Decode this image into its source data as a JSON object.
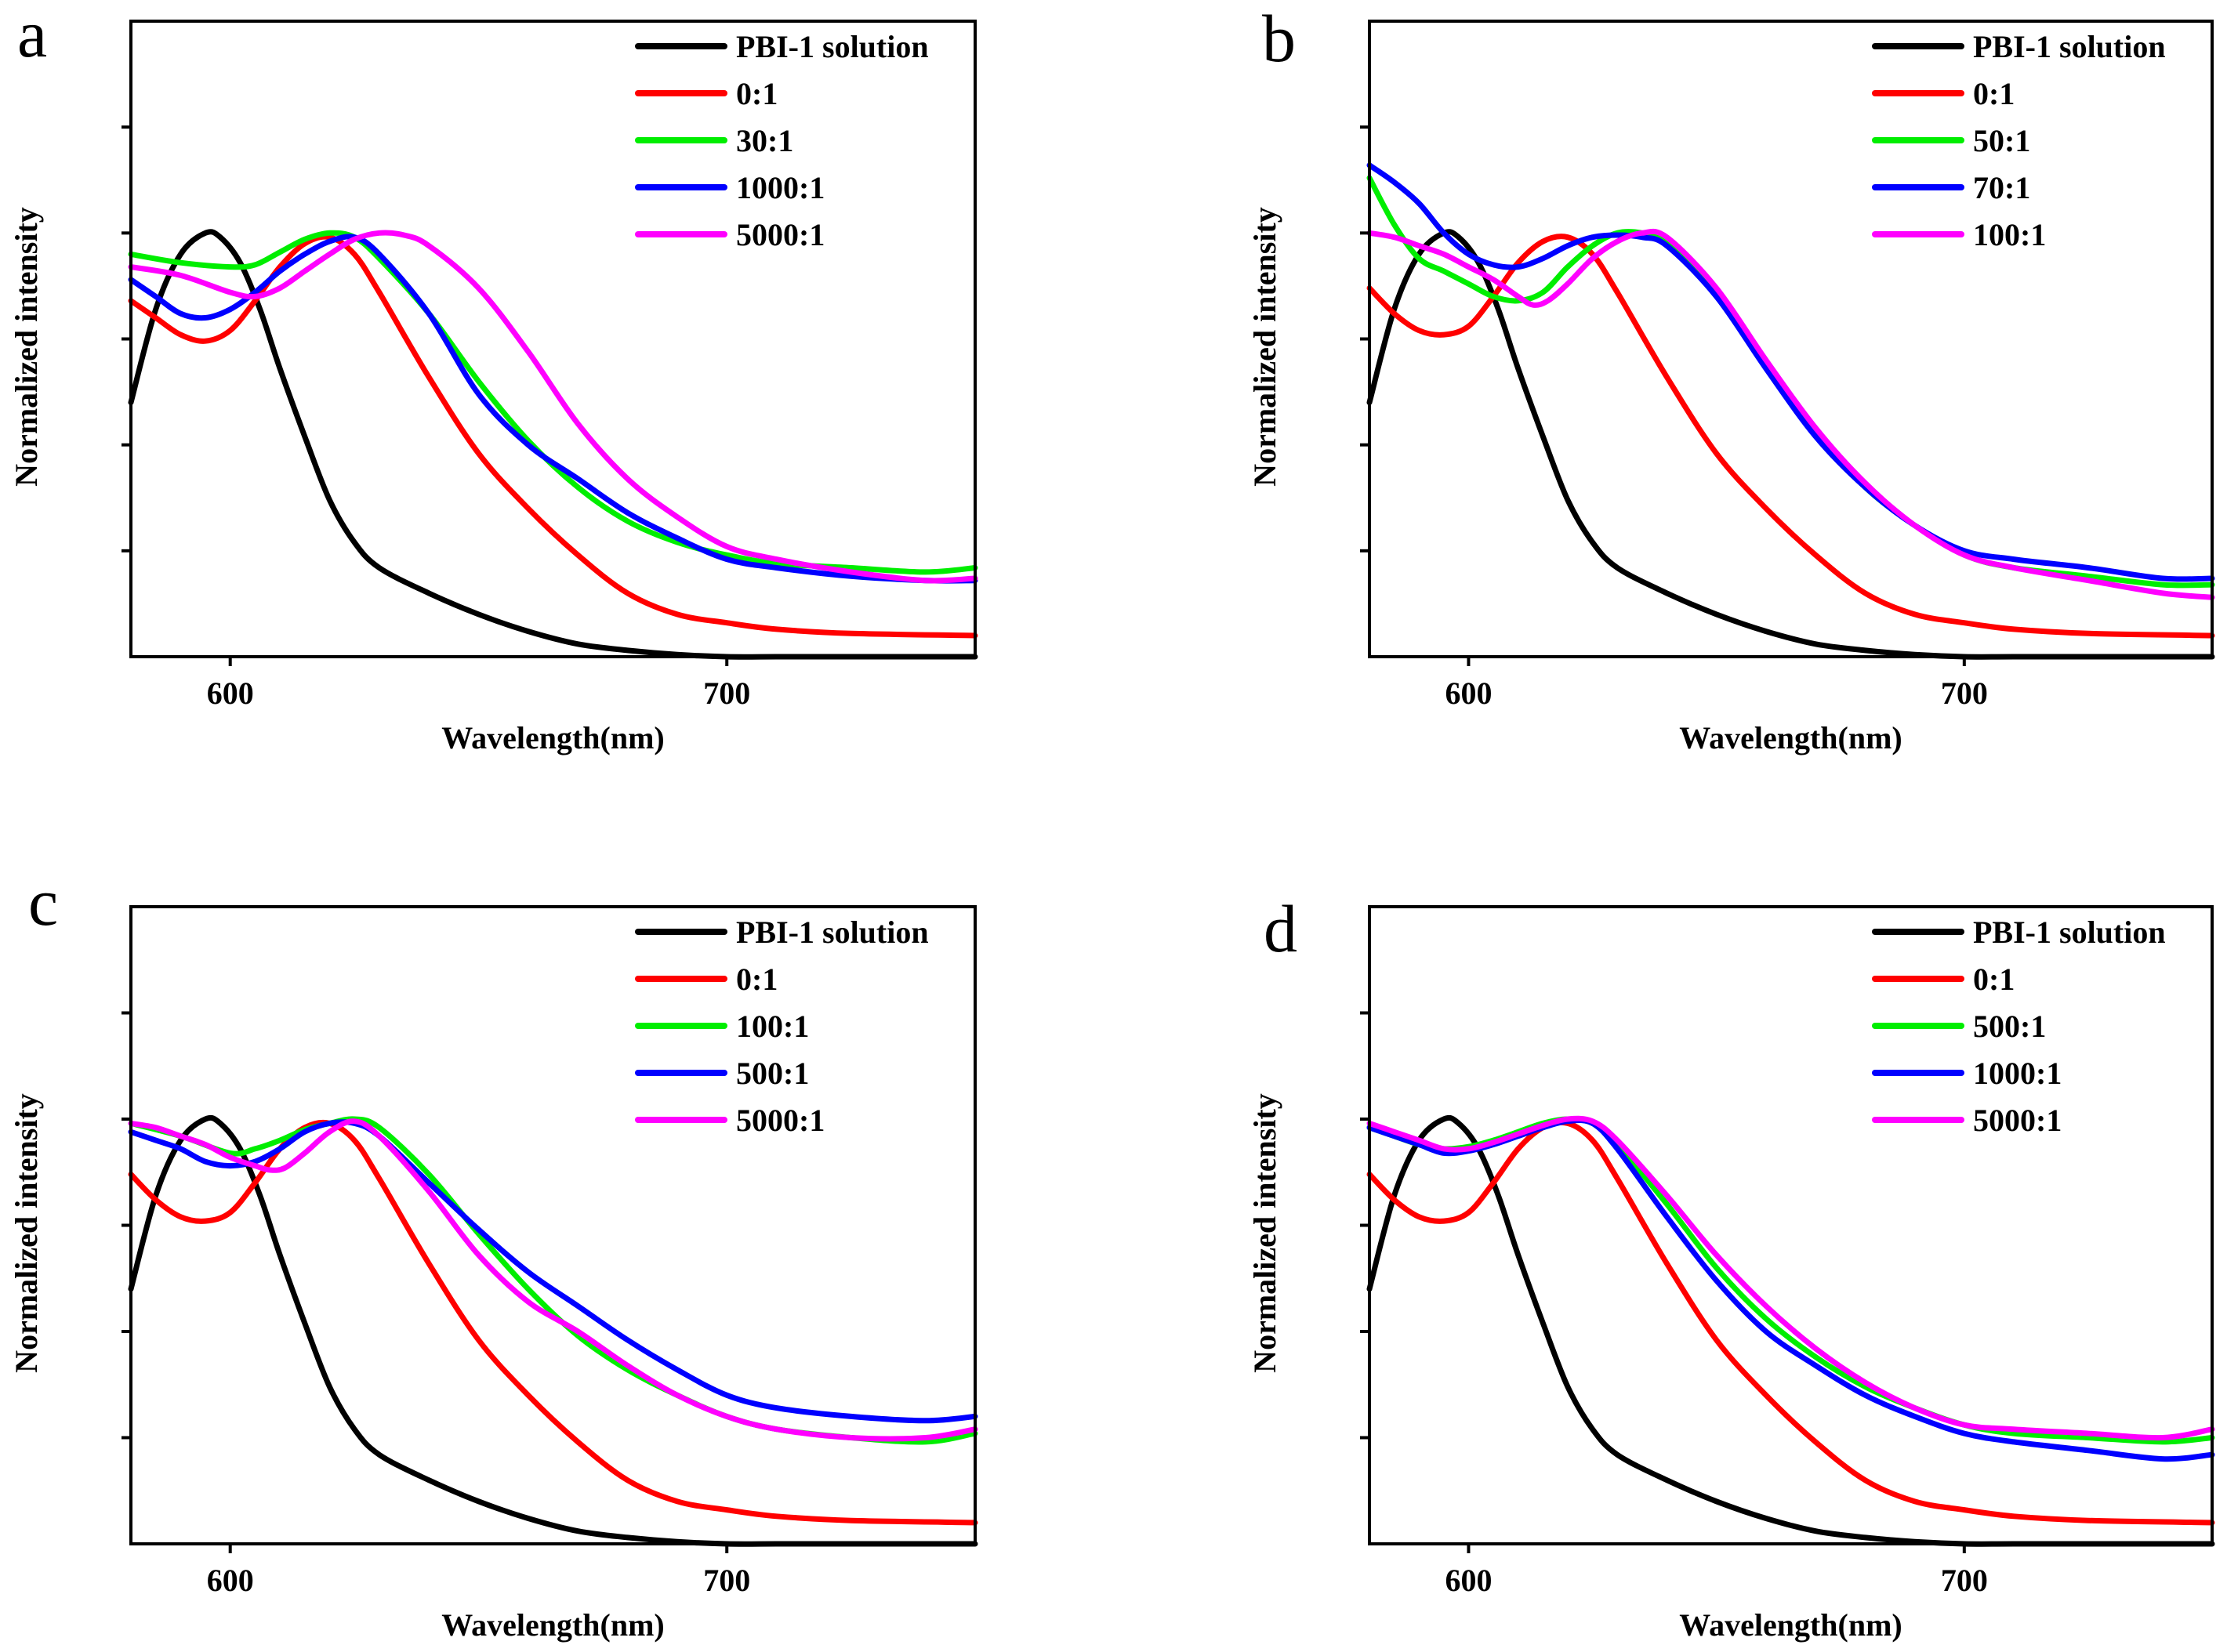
{
  "chart_data": [
    {
      "type": "line",
      "panel": "a",
      "xlabel": "Wavelength(nm)",
      "ylabel": "Normalized intensity",
      "xlim": [
        580,
        750
      ],
      "ylim": [
        0,
        1.5
      ],
      "xticks": [
        600,
        700
      ],
      "legend_position": "top-right",
      "series": [
        {
          "name": "PBI-1 solution",
          "color": "#000000",
          "x": [
            580,
            585,
            590,
            595,
            598,
            602,
            606,
            610,
            615,
            620,
            625,
            630,
            640,
            650,
            660,
            670,
            680,
            690,
            700,
            710,
            720,
            735,
            750
          ],
          "y": [
            0.6,
            0.82,
            0.95,
            1.0,
            0.99,
            0.93,
            0.82,
            0.68,
            0.52,
            0.37,
            0.27,
            0.21,
            0.15,
            0.1,
            0.06,
            0.03,
            0.015,
            0.005,
            0.0,
            0.0,
            0.0,
            0.0,
            0.0
          ]
        },
        {
          "name": "0:1",
          "color": "#ff0000",
          "x": [
            580,
            585,
            590,
            595,
            600,
            605,
            610,
            615,
            620,
            625,
            630,
            640,
            650,
            660,
            670,
            680,
            690,
            700,
            710,
            725,
            750
          ],
          "y": [
            0.84,
            0.8,
            0.76,
            0.745,
            0.77,
            0.84,
            0.92,
            0.975,
            0.99,
            0.95,
            0.86,
            0.66,
            0.48,
            0.35,
            0.24,
            0.15,
            0.1,
            0.08,
            0.065,
            0.055,
            0.05
          ]
        },
        {
          "name": "30:1",
          "color": "#00ee00",
          "x": [
            580,
            590,
            600,
            605,
            610,
            615,
            620,
            625,
            630,
            640,
            650,
            660,
            670,
            680,
            690,
            700,
            710,
            725,
            740,
            750
          ],
          "y": [
            0.95,
            0.93,
            0.92,
            0.925,
            0.955,
            0.985,
            1.0,
            0.99,
            0.94,
            0.81,
            0.65,
            0.51,
            0.4,
            0.32,
            0.27,
            0.24,
            0.22,
            0.21,
            0.2,
            0.21
          ]
        },
        {
          "name": "1000:1",
          "color": "#0000ff",
          "x": [
            580,
            585,
            590,
            595,
            600,
            605,
            610,
            615,
            620,
            625,
            630,
            640,
            650,
            660,
            670,
            680,
            690,
            700,
            710,
            725,
            740,
            750
          ],
          "y": [
            0.89,
            0.85,
            0.81,
            0.8,
            0.82,
            0.86,
            0.91,
            0.95,
            0.98,
            0.99,
            0.95,
            0.81,
            0.62,
            0.5,
            0.42,
            0.34,
            0.28,
            0.23,
            0.21,
            0.19,
            0.18,
            0.18
          ]
        },
        {
          "name": "5000:1",
          "color": "#ff00ff",
          "x": [
            580,
            590,
            600,
            605,
            610,
            615,
            620,
            625,
            630,
            635,
            640,
            650,
            660,
            670,
            680,
            690,
            700,
            710,
            725,
            740,
            750
          ],
          "y": [
            0.92,
            0.9,
            0.86,
            0.85,
            0.87,
            0.91,
            0.95,
            0.985,
            1.0,
            0.995,
            0.97,
            0.87,
            0.72,
            0.55,
            0.42,
            0.33,
            0.26,
            0.23,
            0.2,
            0.18,
            0.185
          ]
        }
      ]
    },
    {
      "type": "line",
      "panel": "b",
      "xlabel": "Wavelength(nm)",
      "ylabel": "Normalized intensity",
      "xlim": [
        580,
        750
      ],
      "ylim": [
        0,
        1.5
      ],
      "xticks": [
        600,
        700
      ],
      "legend_position": "top-right",
      "series": [
        {
          "name": "PBI-1 solution",
          "color": "#000000",
          "x": [
            580,
            585,
            590,
            595,
            598,
            602,
            606,
            610,
            615,
            620,
            625,
            630,
            640,
            650,
            660,
            670,
            680,
            690,
            700,
            710,
            720,
            735,
            750
          ],
          "y": [
            0.6,
            0.82,
            0.95,
            1.0,
            0.99,
            0.93,
            0.82,
            0.68,
            0.52,
            0.37,
            0.27,
            0.21,
            0.15,
            0.1,
            0.06,
            0.03,
            0.015,
            0.005,
            0.0,
            0.0,
            0.0,
            0.0,
            0.0
          ]
        },
        {
          "name": "0:1",
          "color": "#ff0000",
          "x": [
            580,
            585,
            590,
            595,
            600,
            605,
            610,
            615,
            620,
            625,
            630,
            640,
            650,
            660,
            670,
            680,
            690,
            700,
            710,
            725,
            750
          ],
          "y": [
            0.87,
            0.81,
            0.77,
            0.76,
            0.78,
            0.85,
            0.93,
            0.98,
            0.99,
            0.95,
            0.86,
            0.66,
            0.48,
            0.35,
            0.24,
            0.15,
            0.1,
            0.08,
            0.065,
            0.055,
            0.05
          ]
        },
        {
          "name": "50:1",
          "color": "#00ee00",
          "x": [
            580,
            585,
            590,
            595,
            600,
            605,
            610,
            615,
            620,
            625,
            630,
            635,
            640,
            650,
            660,
            670,
            680,
            690,
            700,
            710,
            725,
            740,
            750
          ],
          "y": [
            1.13,
            1.02,
            0.94,
            0.91,
            0.88,
            0.85,
            0.84,
            0.86,
            0.92,
            0.97,
            1.0,
            1.0,
            0.98,
            0.86,
            0.69,
            0.53,
            0.4,
            0.31,
            0.24,
            0.21,
            0.19,
            0.17,
            0.17
          ]
        },
        {
          "name": "70:1",
          "color": "#0000ff",
          "x": [
            580,
            585,
            590,
            595,
            600,
            605,
            610,
            615,
            620,
            625,
            630,
            635,
            640,
            650,
            660,
            670,
            680,
            690,
            700,
            710,
            725,
            740,
            750
          ],
          "y": [
            1.16,
            1.12,
            1.07,
            1.0,
            0.95,
            0.925,
            0.92,
            0.94,
            0.97,
            0.99,
            0.995,
            0.99,
            0.97,
            0.85,
            0.68,
            0.52,
            0.4,
            0.31,
            0.25,
            0.23,
            0.21,
            0.185,
            0.185
          ]
        },
        {
          "name": "100:1",
          "color": "#ff00ff",
          "x": [
            580,
            585,
            590,
            595,
            600,
            605,
            610,
            613,
            616,
            620,
            625,
            630,
            635,
            640,
            650,
            660,
            670,
            680,
            690,
            700,
            710,
            725,
            740,
            750
          ],
          "y": [
            1.0,
            0.99,
            0.97,
            0.95,
            0.92,
            0.89,
            0.85,
            0.83,
            0.84,
            0.88,
            0.94,
            0.98,
            1.0,
            0.99,
            0.87,
            0.7,
            0.54,
            0.41,
            0.31,
            0.24,
            0.21,
            0.18,
            0.15,
            0.14
          ]
        }
      ]
    },
    {
      "type": "line",
      "panel": "c",
      "xlabel": "Wavelength(nm)",
      "ylabel": "Normalized intensity",
      "xlim": [
        580,
        750
      ],
      "ylim": [
        0,
        1.5
      ],
      "xticks": [
        600,
        700
      ],
      "legend_position": "top-right",
      "series": [
        {
          "name": "PBI-1 solution",
          "color": "#000000",
          "x": [
            580,
            585,
            590,
            595,
            598,
            602,
            606,
            610,
            615,
            620,
            625,
            630,
            640,
            650,
            660,
            670,
            680,
            690,
            700,
            710,
            720,
            735,
            750
          ],
          "y": [
            0.6,
            0.82,
            0.95,
            1.0,
            0.99,
            0.93,
            0.82,
            0.68,
            0.52,
            0.37,
            0.27,
            0.21,
            0.15,
            0.1,
            0.06,
            0.03,
            0.015,
            0.005,
            0.0,
            0.0,
            0.0,
            0.0,
            0.0
          ]
        },
        {
          "name": "0:1",
          "color": "#ff0000",
          "x": [
            580,
            585,
            590,
            595,
            600,
            605,
            610,
            615,
            620,
            625,
            630,
            640,
            650,
            660,
            670,
            680,
            690,
            700,
            710,
            725,
            750
          ],
          "y": [
            0.87,
            0.81,
            0.77,
            0.76,
            0.78,
            0.85,
            0.93,
            0.98,
            0.99,
            0.95,
            0.86,
            0.66,
            0.48,
            0.35,
            0.24,
            0.15,
            0.1,
            0.08,
            0.065,
            0.055,
            0.05
          ]
        },
        {
          "name": "100:1",
          "color": "#00ee00",
          "x": [
            580,
            590,
            600,
            605,
            610,
            615,
            620,
            625,
            630,
            640,
            650,
            660,
            670,
            680,
            690,
            700,
            710,
            725,
            740,
            750
          ],
          "y": [
            0.99,
            0.96,
            0.92,
            0.93,
            0.95,
            0.975,
            0.99,
            1.0,
            0.98,
            0.87,
            0.73,
            0.6,
            0.49,
            0.41,
            0.35,
            0.3,
            0.27,
            0.25,
            0.24,
            0.26
          ]
        },
        {
          "name": "500:1",
          "color": "#0000ff",
          "x": [
            580,
            585,
            590,
            595,
            600,
            605,
            610,
            615,
            620,
            625,
            630,
            640,
            650,
            660,
            670,
            680,
            690,
            700,
            710,
            725,
            740,
            750
          ],
          "y": [
            0.97,
            0.95,
            0.93,
            0.9,
            0.89,
            0.9,
            0.93,
            0.97,
            0.99,
            0.99,
            0.96,
            0.85,
            0.74,
            0.64,
            0.56,
            0.48,
            0.41,
            0.35,
            0.32,
            0.3,
            0.29,
            0.3
          ]
        },
        {
          "name": "5000:1",
          "color": "#ff00ff",
          "x": [
            580,
            585,
            590,
            595,
            600,
            605,
            608,
            611,
            615,
            620,
            625,
            630,
            640,
            650,
            660,
            670,
            680,
            690,
            700,
            710,
            725,
            740,
            750
          ],
          "y": [
            0.99,
            0.98,
            0.96,
            0.94,
            0.91,
            0.89,
            0.88,
            0.885,
            0.92,
            0.97,
            0.995,
            0.96,
            0.83,
            0.68,
            0.57,
            0.5,
            0.42,
            0.35,
            0.3,
            0.27,
            0.25,
            0.25,
            0.27
          ]
        }
      ]
    },
    {
      "type": "line",
      "panel": "d",
      "xlabel": "Wavelength(nm)",
      "ylabel": "Normalized intensity",
      "xlim": [
        580,
        750
      ],
      "ylim": [
        0,
        1.5
      ],
      "xticks": [
        600,
        700
      ],
      "legend_position": "top-right",
      "series": [
        {
          "name": "PBI-1 solution",
          "color": "#000000",
          "x": [
            580,
            585,
            590,
            595,
            598,
            602,
            606,
            610,
            615,
            620,
            625,
            630,
            640,
            650,
            660,
            670,
            680,
            690,
            700,
            710,
            720,
            735,
            750
          ],
          "y": [
            0.6,
            0.82,
            0.95,
            1.0,
            0.99,
            0.93,
            0.82,
            0.68,
            0.52,
            0.37,
            0.27,
            0.21,
            0.15,
            0.1,
            0.06,
            0.03,
            0.015,
            0.005,
            0.0,
            0.0,
            0.0,
            0.0,
            0.0
          ]
        },
        {
          "name": "0:1",
          "color": "#ff0000",
          "x": [
            580,
            585,
            590,
            595,
            600,
            605,
            610,
            615,
            620,
            625,
            630,
            640,
            650,
            660,
            670,
            680,
            690,
            700,
            710,
            725,
            750
          ],
          "y": [
            0.87,
            0.81,
            0.77,
            0.76,
            0.78,
            0.85,
            0.93,
            0.98,
            0.99,
            0.95,
            0.86,
            0.66,
            0.48,
            0.35,
            0.24,
            0.15,
            0.1,
            0.08,
            0.065,
            0.055,
            0.05
          ]
        },
        {
          "name": "500:1",
          "color": "#00ee00",
          "x": [
            580,
            585,
            590,
            595,
            600,
            605,
            610,
            615,
            620,
            625,
            630,
            640,
            650,
            660,
            670,
            680,
            690,
            700,
            710,
            725,
            740,
            750
          ],
          "y": [
            0.98,
            0.96,
            0.94,
            0.93,
            0.935,
            0.95,
            0.97,
            0.99,
            1.0,
            0.99,
            0.94,
            0.8,
            0.65,
            0.53,
            0.44,
            0.37,
            0.32,
            0.28,
            0.26,
            0.25,
            0.24,
            0.25
          ]
        },
        {
          "name": "1000:1",
          "color": "#0000ff",
          "x": [
            580,
            585,
            590,
            595,
            600,
            605,
            610,
            615,
            620,
            625,
            630,
            640,
            650,
            660,
            670,
            680,
            690,
            700,
            710,
            725,
            740,
            750
          ],
          "y": [
            0.98,
            0.96,
            0.94,
            0.92,
            0.925,
            0.94,
            0.96,
            0.98,
            0.995,
            0.99,
            0.93,
            0.77,
            0.62,
            0.5,
            0.42,
            0.35,
            0.3,
            0.26,
            0.24,
            0.22,
            0.2,
            0.21
          ]
        },
        {
          "name": "5000:1",
          "color": "#ff00ff",
          "x": [
            580,
            585,
            590,
            595,
            600,
            605,
            610,
            615,
            620,
            625,
            630,
            640,
            650,
            660,
            670,
            680,
            690,
            700,
            710,
            725,
            740,
            750
          ],
          "y": [
            0.99,
            0.97,
            0.95,
            0.93,
            0.93,
            0.945,
            0.965,
            0.985,
            1.0,
            0.995,
            0.95,
            0.82,
            0.68,
            0.56,
            0.46,
            0.38,
            0.32,
            0.28,
            0.27,
            0.26,
            0.25,
            0.27
          ]
        }
      ]
    }
  ]
}
